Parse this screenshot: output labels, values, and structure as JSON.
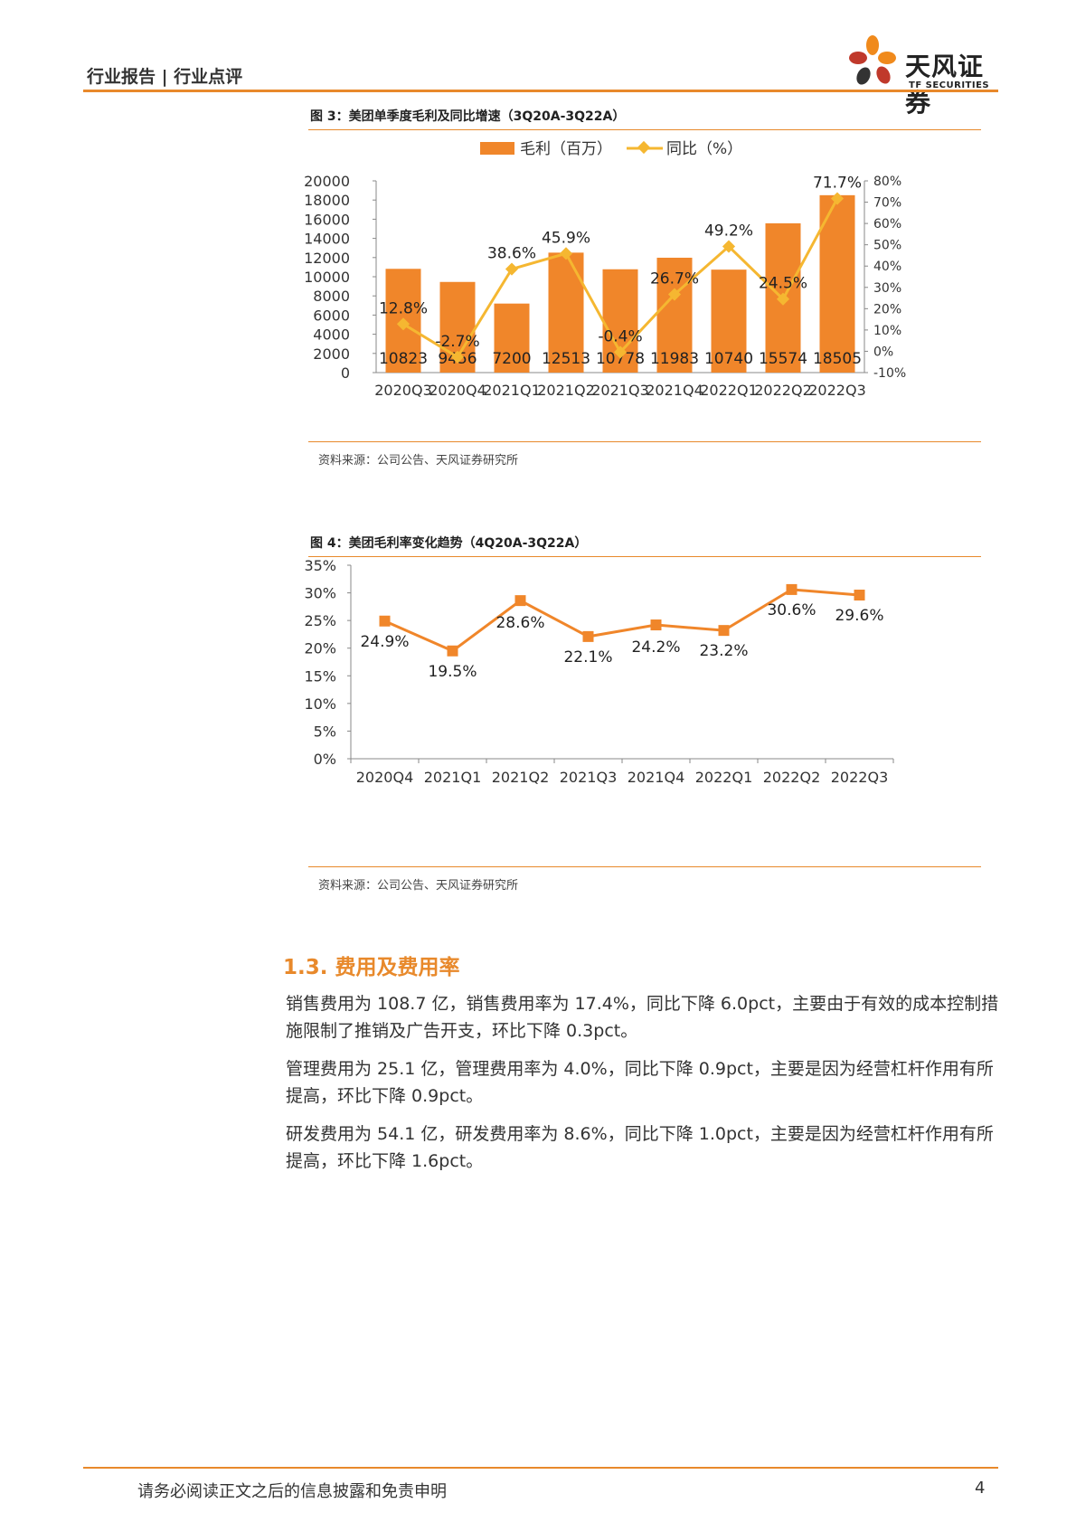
{
  "header": {
    "report_type": "行业报告 | 行业点评",
    "logo_cn": "天风证券",
    "logo_en": "TF SECURITIES",
    "colors": {
      "accent": "#E8892B",
      "logo_orange": "#F08A1C",
      "logo_red": "#C0392B",
      "logo_dark": "#333333"
    }
  },
  "figure3": {
    "title": "图 3：美团单季度毛利及同比增速（3Q20A-3Q22A）",
    "source": "资料来源：公司公告、天风证券研究所",
    "legend_bar": "毛利（百万）",
    "legend_line": "同比（%）"
  },
  "figure4": {
    "title": "图 4：美团毛利率变化趋势（4Q20A-3Q22A）",
    "source": "资料来源：公司公告、天风证券研究所"
  },
  "chart_data": [
    {
      "type": "bar",
      "categories": [
        "2020Q3",
        "2020Q4",
        "2021Q1",
        "2021Q2",
        "2021Q3",
        "2021Q4",
        "2022Q1",
        "2022Q2",
        "2022Q3"
      ],
      "series": [
        {
          "name": "毛利（百万）",
          "type": "bar",
          "axis": "left",
          "color": "#F0862A",
          "values": [
            10823,
            9456,
            7200,
            12513,
            10778,
            11983,
            10740,
            15574,
            18505
          ],
          "labels": [
            "10823",
            "9456",
            "7200",
            "12513",
            "10778",
            "11983",
            "10740",
            "15574",
            "18505"
          ]
        },
        {
          "name": "同比（%）",
          "type": "line",
          "axis": "right",
          "color": "#F5B731",
          "values": [
            12.8,
            -2.7,
            38.6,
            45.9,
            -0.4,
            26.7,
            49.2,
            24.5,
            71.7
          ],
          "labels": [
            "12.8%",
            "-2.7%",
            "38.6%",
            "45.9%",
            "-0.4%",
            "26.7%",
            "49.2%",
            "24.5%",
            "71.7%"
          ]
        }
      ],
      "ylim_left": [
        0,
        20000
      ],
      "yticks_left": [
        "0",
        "2000",
        "4000",
        "6000",
        "8000",
        "10000",
        "12000",
        "14000",
        "16000",
        "18000",
        "20000"
      ],
      "ylim_right": [
        -10,
        80
      ],
      "yticks_right": [
        "-10%",
        "0%",
        "10%",
        "20%",
        "30%",
        "40%",
        "50%",
        "60%",
        "70%",
        "80%"
      ],
      "legend": "top",
      "grid": false
    },
    {
      "type": "line",
      "categories": [
        "2020Q4",
        "2021Q1",
        "2021Q2",
        "2021Q3",
        "2021Q4",
        "2022Q1",
        "2022Q2",
        "2022Q3"
      ],
      "series": [
        {
          "color": "#F0862A",
          "values": [
            24.9,
            19.5,
            28.6,
            22.1,
            24.2,
            23.2,
            30.6,
            29.6
          ],
          "labels": [
            "24.9%",
            "19.5%",
            "28.6%",
            "22.1%",
            "24.2%",
            "23.2%",
            "30.6%",
            "29.6%"
          ]
        }
      ],
      "ylim": [
        0,
        35
      ],
      "yticks": [
        "0%",
        "5%",
        "10%",
        "15%",
        "20%",
        "25%",
        "30%",
        "35%"
      ],
      "grid": false
    }
  ],
  "section": {
    "title": "1.3. 费用及费用率",
    "paragraphs": [
      "销售费用为 108.7 亿，销售费用率为 17.4%，同比下降 6.0pct，主要由于有效的成本控制措施限制了推销及广告开支，环比下降 0.3pct。",
      "管理费用为 25.1 亿，管理费用率为 4.0%，同比下降 0.9pct，主要是因为经营杠杆作用有所提高，环比下降 0.9pct。",
      "研发费用为 54.1 亿，研发费用率为 8.6%，同比下降 1.0pct，主要是因为经营杠杆作用有所提高，环比下降 1.6pct。"
    ]
  },
  "footer": {
    "disclaimer": "请务必阅读正文之后的信息披露和免责申明",
    "page_number": "4"
  }
}
